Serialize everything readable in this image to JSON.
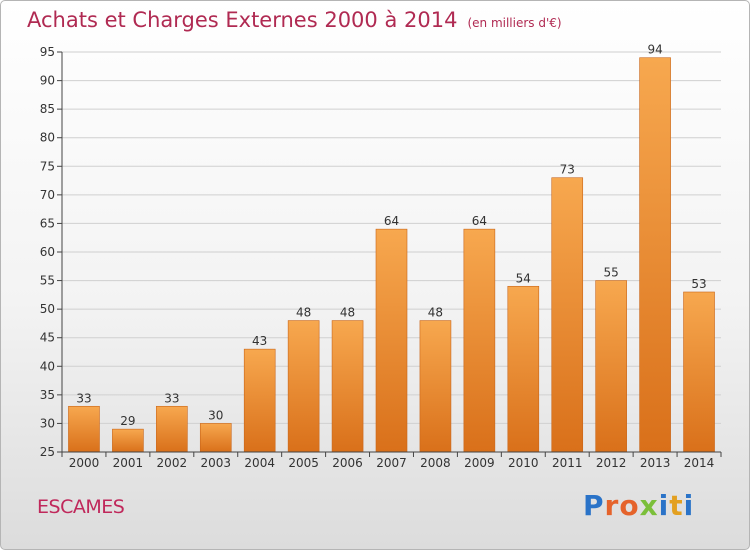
{
  "title": "Achats et Charges Externes 2000 à 2014",
  "unit": "(en milliers d'€)",
  "commune": "ESCAMES",
  "logo_text": "Proxiti",
  "colors": {
    "title": "#b02a52",
    "bar_light": "#f7a84f",
    "bar_dark": "#d9701a",
    "grid": "#d0d0d0"
  },
  "chart_data": {
    "type": "bar",
    "categories": [
      "2000",
      "2001",
      "2002",
      "2003",
      "2004",
      "2005",
      "2006",
      "2007",
      "2008",
      "2009",
      "2010",
      "2011",
      "2012",
      "2013",
      "2014"
    ],
    "values": [
      33,
      29,
      33,
      30,
      43,
      48,
      48,
      64,
      48,
      64,
      54,
      73,
      55,
      94,
      53
    ],
    "ylim": [
      25,
      95
    ],
    "yticks": [
      25,
      30,
      35,
      40,
      45,
      50,
      55,
      60,
      65,
      70,
      75,
      80,
      85,
      90,
      95
    ],
    "grid": true,
    "data_labels": true,
    "legend": "none"
  }
}
